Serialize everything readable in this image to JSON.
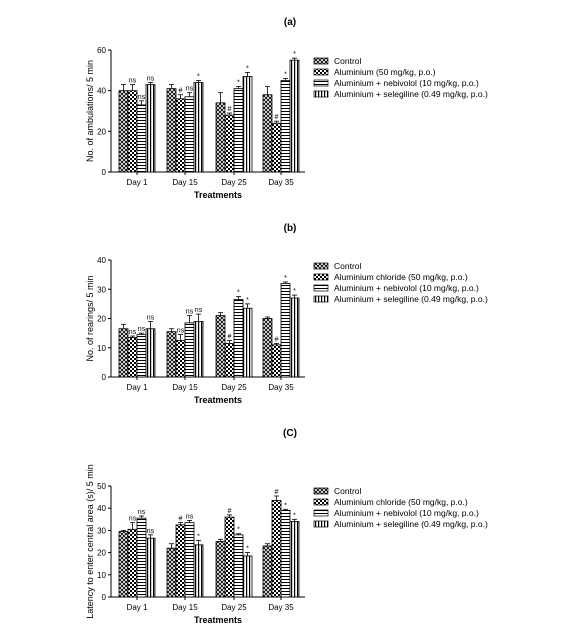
{
  "chart_data": [
    {
      "type": "bar",
      "panel_label": "(a)",
      "categories": [
        "Day 1",
        "Day 15",
        "Day 25",
        "Day 35"
      ],
      "xlabel": "Treatments",
      "ylabel": "No. of ambulations/ 5 min",
      "ylim": [
        0,
        60
      ],
      "yticks": [
        0,
        20,
        40,
        60
      ],
      "legend_position": "right",
      "series": [
        {
          "name": "Control",
          "pattern": "cross",
          "values": [
            40,
            41,
            34,
            38
          ],
          "errors": [
            3,
            2,
            5,
            4
          ],
          "labels": [
            "",
            "",
            "",
            ""
          ]
        },
        {
          "name": "Aluminium (50 mg/kg, p.o.)",
          "pattern": "check",
          "values": [
            40,
            36,
            28,
            24
          ],
          "errors": [
            3,
            2,
            1,
            1
          ],
          "labels": [
            "ns",
            "#",
            "#",
            "#"
          ]
        },
        {
          "name": "Aluminium + nebivolol (10 mg/kg, p.o.)",
          "pattern": "hlines",
          "values": [
            33,
            37,
            41,
            45
          ],
          "errors": [
            2,
            2,
            1,
            1
          ],
          "labels": [
            "ns",
            "ns",
            "*",
            "*"
          ]
        },
        {
          "name": "Aluminium + selegiline (0.49 mg/kg, p.o.)",
          "pattern": "vlines",
          "values": [
            43,
            44,
            47,
            55
          ],
          "errors": [
            1,
            1,
            2,
            1
          ],
          "labels": [
            "ns",
            "*",
            "*",
            "*"
          ]
        }
      ]
    },
    {
      "type": "bar",
      "panel_label": "(b)",
      "categories": [
        "Day 1",
        "Day 15",
        "Day 25",
        "Day 35"
      ],
      "xlabel": "Treatments",
      "ylabel": "No. of rearings/ 5 min",
      "ylim": [
        0,
        40
      ],
      "yticks": [
        0,
        10,
        20,
        30,
        40
      ],
      "legend_position": "right",
      "series": [
        {
          "name": "Control",
          "pattern": "cross",
          "values": [
            16.5,
            15.5,
            21,
            20
          ],
          "errors": [
            1.5,
            1,
            1,
            0.5
          ],
          "labels": [
            "",
            "",
            "",
            ""
          ]
        },
        {
          "name": "Aluminium chloride (50 mg/kg, p.o.)",
          "pattern": "check",
          "values": [
            13.5,
            12.5,
            11.5,
            11
          ],
          "errors": [
            0.5,
            2,
            1,
            0.5
          ],
          "labels": [
            "ns",
            "ns",
            "#",
            "#"
          ]
        },
        {
          "name": "Aluminium + nebivolol (10 mg/kg, p.o.)",
          "pattern": "hlines",
          "values": [
            14.5,
            18.5,
            26.5,
            32
          ],
          "errors": [
            0.5,
            2.5,
            1,
            0.5
          ],
          "labels": [
            "ns",
            "ns",
            "*",
            "*"
          ]
        },
        {
          "name": "Aluminium + selegiline (0.49 mg/kg, p.o.)",
          "pattern": "vlines",
          "values": [
            16.5,
            19,
            23.5,
            27
          ],
          "errors": [
            2.5,
            2.5,
            1.5,
            1
          ],
          "labels": [
            "ns",
            "ns",
            "*",
            "*"
          ]
        }
      ]
    },
    {
      "type": "bar",
      "panel_label": "(C)",
      "categories": [
        "Day 1",
        "Day 15",
        "Day 25",
        "Day 35"
      ],
      "xlabel": "Treatments",
      "ylabel": "Latency to enter central area (s)/ 5 min",
      "ylim": [
        0,
        50
      ],
      "yticks": [
        0,
        10,
        20,
        30,
        40,
        50
      ],
      "legend_position": "right",
      "series": [
        {
          "name": "Control",
          "pattern": "cross",
          "values": [
            29.5,
            22,
            25,
            23
          ],
          "errors": [
            0.5,
            2,
            1,
            1
          ],
          "labels": [
            "",
            "",
            "",
            ""
          ]
        },
        {
          "name": "Aluminium chloride (50 mg/kg, p.o.)",
          "pattern": "check",
          "values": [
            30.5,
            32.5,
            36,
            43.5
          ],
          "errors": [
            3,
            1,
            1,
            2
          ],
          "labels": [
            "ns",
            "#",
            "#",
            "#"
          ]
        },
        {
          "name": "Aluminium + nebivolol (10 mg/kg, p.o.)",
          "pattern": "hlines",
          "values": [
            35.5,
            33.5,
            28,
            39
          ],
          "errors": [
            1,
            1,
            0.5,
            0.5
          ],
          "labels": [
            "ns",
            "ns",
            "*",
            "*"
          ]
        },
        {
          "name": "Aluminium + selegiline (0.49 mg/kg, p.o.)",
          "pattern": "vlines",
          "values": [
            26.5,
            23.5,
            18.5,
            34
          ],
          "errors": [
            1.5,
            2,
            1.5,
            1
          ],
          "labels": [
            "ns",
            "*",
            "*",
            "*"
          ]
        }
      ]
    }
  ]
}
